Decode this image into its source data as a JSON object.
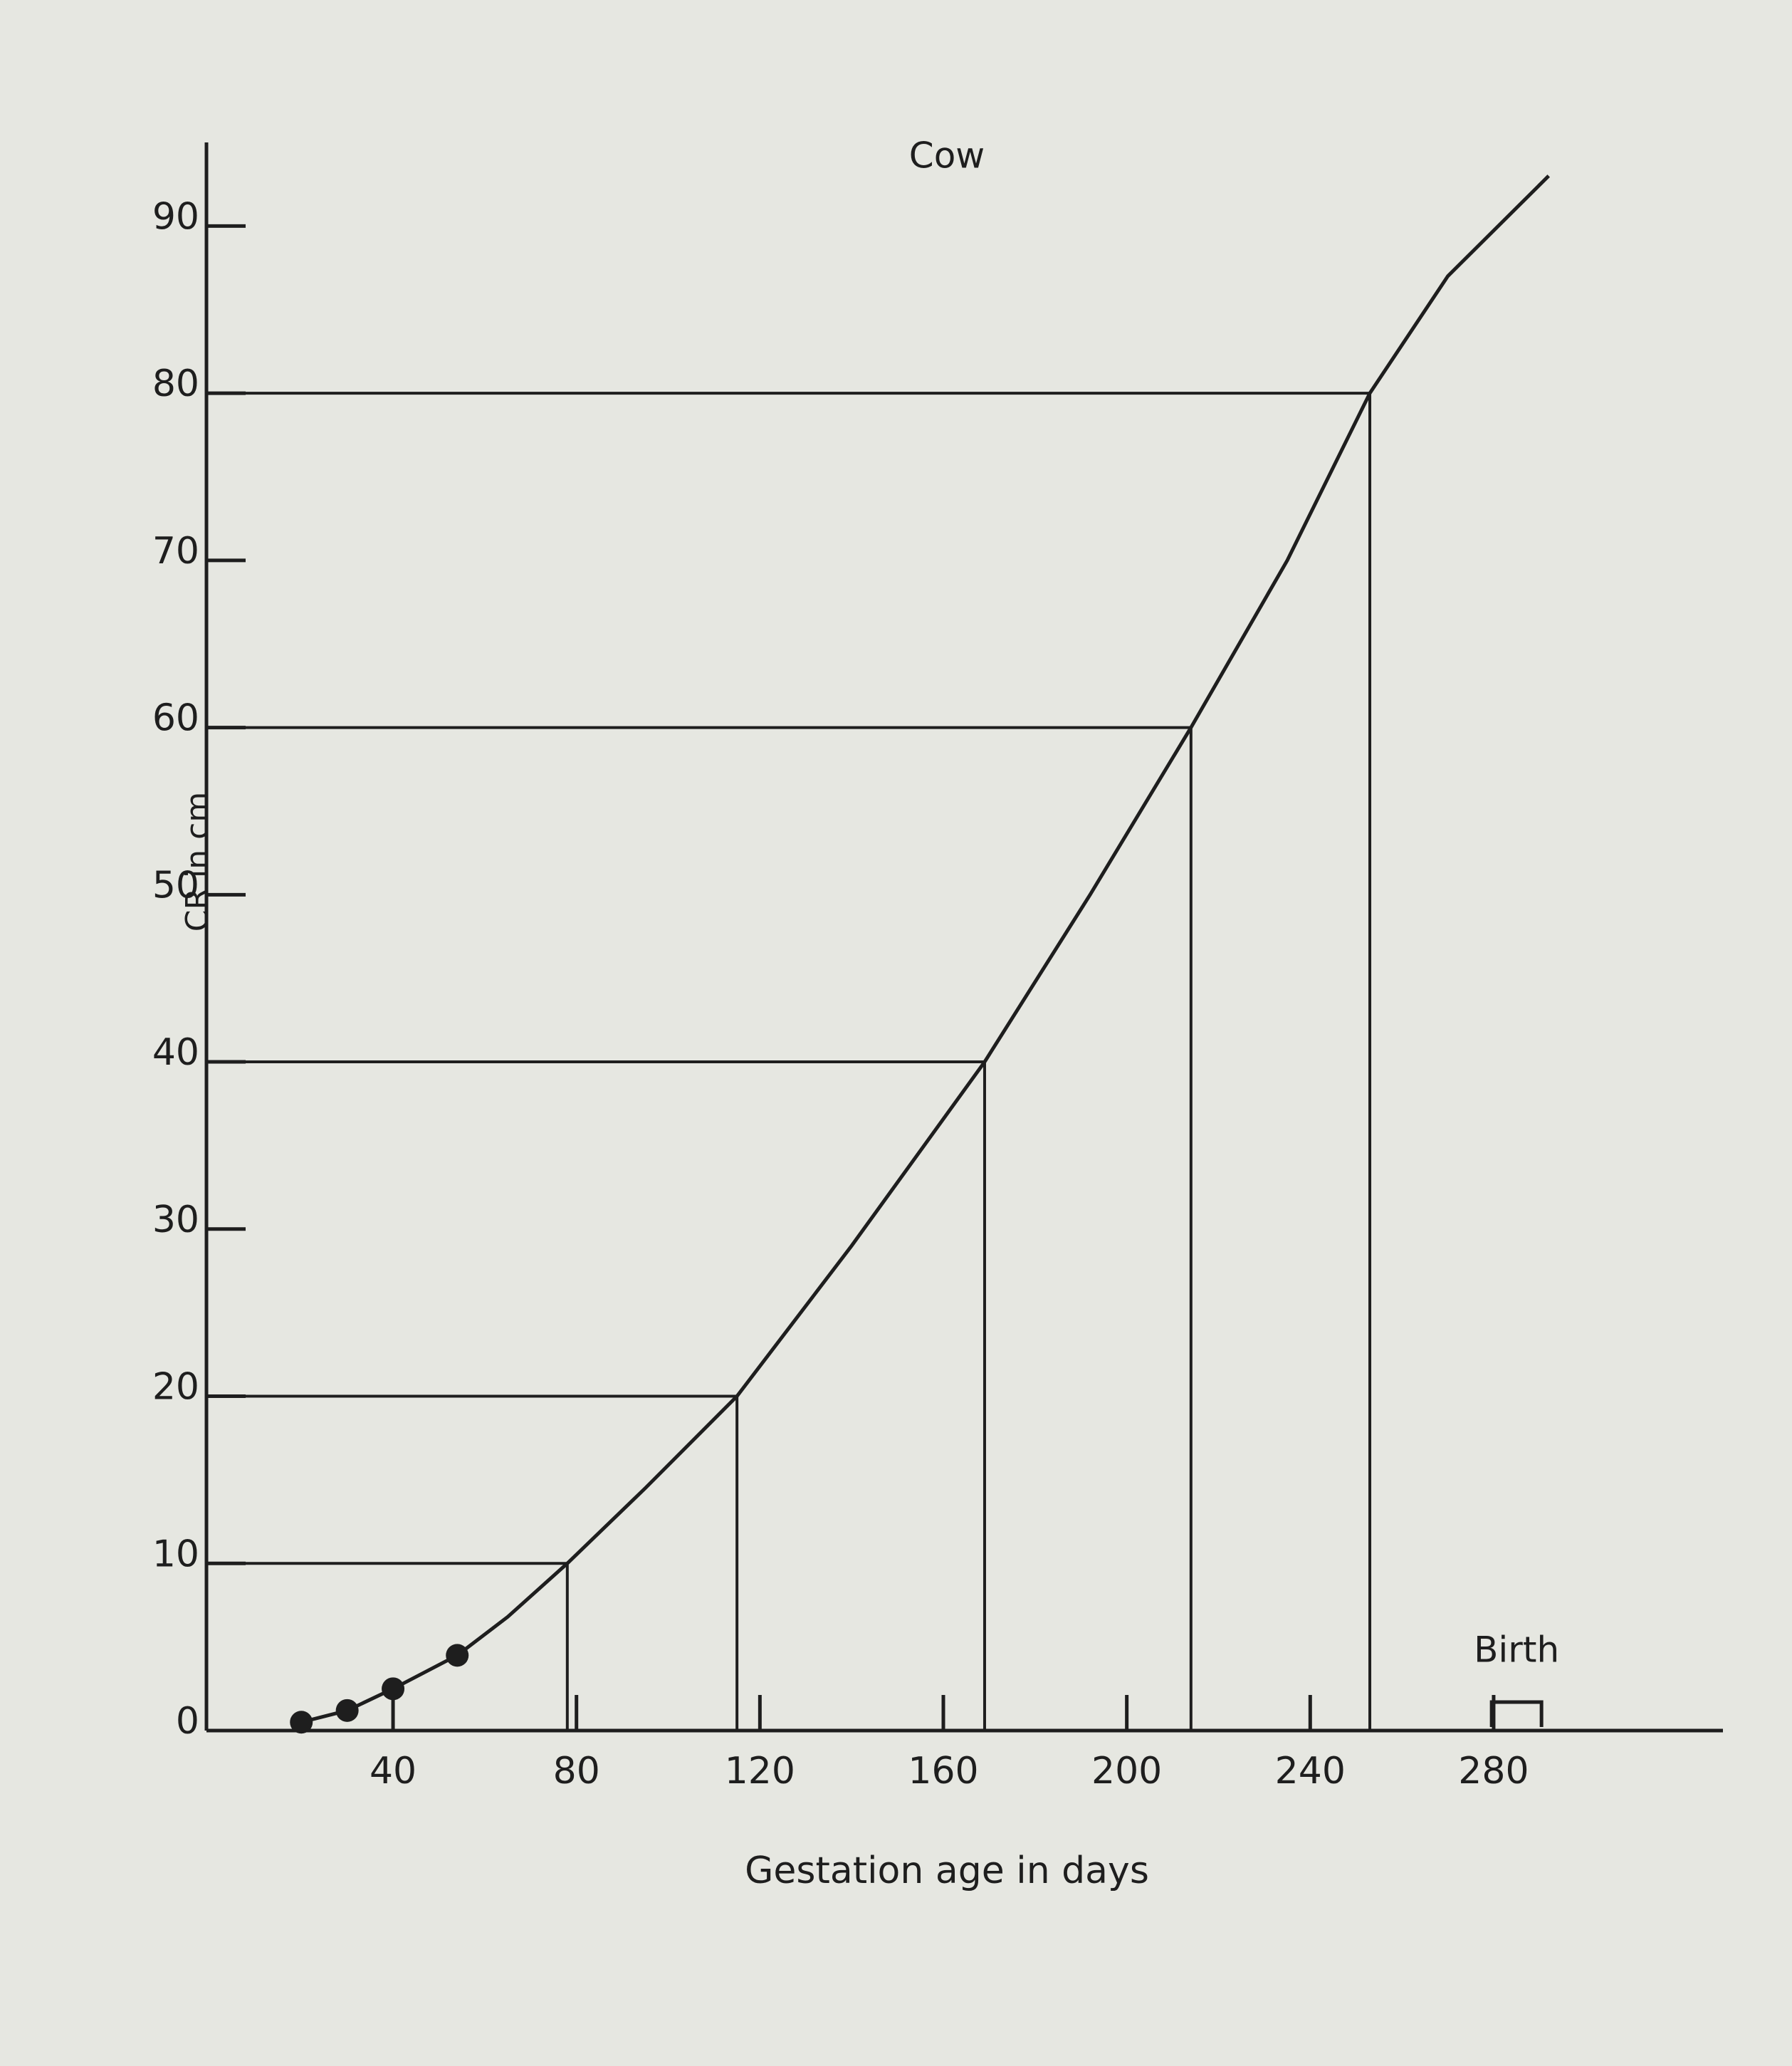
{
  "chart_data": {
    "type": "line",
    "title": "Cow",
    "x_label": "Gestation age in days",
    "y_label": "CR in cm",
    "x": [
      20,
      30,
      40,
      54,
      65,
      78,
      95,
      115,
      140,
      169,
      192,
      214,
      235,
      253,
      270,
      292
    ],
    "values": [
      0.5,
      1.2,
      2.5,
      4.5,
      6.8,
      10,
      14.5,
      20,
      29,
      40,
      50,
      60,
      70,
      80,
      87,
      93
    ],
    "color": "#1e1e1e",
    "markers": {
      "x": [
        20,
        30,
        40,
        54
      ],
      "values": [
        0.5,
        1.2,
        2.5,
        4.5
      ]
    },
    "guides": {
      "x": [
        78,
        115,
        169,
        214,
        253
      ],
      "values": [
        10,
        20,
        40,
        60,
        80
      ]
    },
    "annotations": [
      {
        "text": "Birth",
        "x": 285
      }
    ],
    "xlim": [
      -10,
      330
    ],
    "ylim": [
      0,
      95
    ],
    "xticks": [
      40,
      80,
      120,
      160,
      200,
      240,
      280
    ],
    "yticks": [
      0,
      10,
      20,
      30,
      40,
      50,
      60,
      70,
      80,
      90
    ]
  }
}
